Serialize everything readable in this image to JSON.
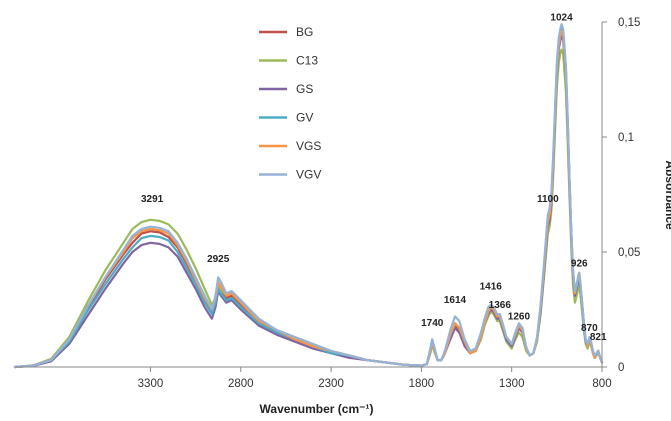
{
  "chart_data": {
    "type": "line",
    "xlabel": "Wavenumber (cm⁻¹)",
    "ylabel": "Absorbance",
    "xlim": [
      4050,
      800
    ],
    "ylim": [
      0,
      0.15
    ],
    "x_reversed": true,
    "y_axis_side": "right",
    "grid": false,
    "legend_position": "top-center",
    "x_ticks": [
      {
        "value": 3300,
        "label": "3300"
      },
      {
        "value": 2800,
        "label": "2800"
      },
      {
        "value": 2300,
        "label": "2300"
      },
      {
        "value": 1800,
        "label": "1800"
      },
      {
        "value": 1300,
        "label": "1300"
      },
      {
        "value": 800,
        "label": "800"
      }
    ],
    "y_ticks": [
      {
        "value": 0,
        "label": "0"
      },
      {
        "value": 0.05,
        "label": "0,05"
      },
      {
        "value": 0.1,
        "label": "0,1"
      },
      {
        "value": 0.15,
        "label": "0,15"
      }
    ],
    "peak_labels": [
      {
        "text": "3291",
        "x": 3291,
        "y": 0.07
      },
      {
        "text": "2925",
        "x": 2925,
        "y": 0.044
      },
      {
        "text": "1740",
        "x": 1740,
        "y": 0.016
      },
      {
        "text": "1614",
        "x": 1614,
        "y": 0.026
      },
      {
        "text": "1416",
        "x": 1416,
        "y": 0.032
      },
      {
        "text": "1366",
        "x": 1366,
        "y": 0.024
      },
      {
        "text": "1260",
        "x": 1260,
        "y": 0.019
      },
      {
        "text": "1100",
        "x": 1100,
        "y": 0.07
      },
      {
        "text": "1024",
        "x": 1024,
        "y": 0.149
      },
      {
        "text": "926",
        "x": 926,
        "y": 0.042
      },
      {
        "text": "870",
        "x": 870,
        "y": 0.014
      },
      {
        "text": "821",
        "x": 821,
        "y": 0.01
      }
    ],
    "x": [
      4050,
      3950,
      3850,
      3750,
      3650,
      3550,
      3450,
      3400,
      3350,
      3300,
      3250,
      3200,
      3150,
      3100,
      3050,
      3000,
      2960,
      2940,
      2925,
      2910,
      2880,
      2850,
      2800,
      2700,
      2600,
      2500,
      2400,
      2300,
      2200,
      2100,
      2000,
      1900,
      1850,
      1800,
      1770,
      1750,
      1740,
      1730,
      1710,
      1690,
      1670,
      1640,
      1614,
      1590,
      1560,
      1530,
      1500,
      1470,
      1450,
      1430,
      1416,
      1400,
      1380,
      1366,
      1350,
      1330,
      1300,
      1280,
      1260,
      1240,
      1220,
      1200,
      1180,
      1160,
      1140,
      1120,
      1100,
      1090,
      1080,
      1070,
      1060,
      1050,
      1040,
      1030,
      1024,
      1015,
      1000,
      990,
      980,
      970,
      960,
      950,
      940,
      930,
      926,
      920,
      910,
      900,
      890,
      880,
      870,
      860,
      850,
      840,
      830,
      821,
      810,
      800
    ],
    "series": [
      {
        "name": "BG",
        "color": "#c0504d",
        "values": [
          0,
          0.0006,
          0.003,
          0.012,
          0.025,
          0.038,
          0.049,
          0.054,
          0.058,
          0.059,
          0.0585,
          0.0565,
          0.052,
          0.045,
          0.037,
          0.029,
          0.024,
          0.029,
          0.036,
          0.034,
          0.03,
          0.031,
          0.027,
          0.019,
          0.015,
          0.012,
          0.009,
          0.006,
          0.005,
          0.003,
          0.002,
          0.001,
          0.0008,
          0.0006,
          0.0012,
          0.007,
          0.011,
          0.008,
          0.003,
          0.003,
          0.006,
          0.013,
          0.018,
          0.016,
          0.01,
          0.006,
          0.007,
          0.013,
          0.019,
          0.023,
          0.025,
          0.024,
          0.021,
          0.021,
          0.017,
          0.012,
          0.009,
          0.013,
          0.017,
          0.015,
          0.008,
          0.005,
          0.006,
          0.012,
          0.025,
          0.043,
          0.062,
          0.065,
          0.072,
          0.088,
          0.108,
          0.128,
          0.139,
          0.1435,
          0.145,
          0.143,
          0.128,
          0.105,
          0.08,
          0.058,
          0.04,
          0.031,
          0.034,
          0.038,
          0.039,
          0.035,
          0.027,
          0.018,
          0.011,
          0.009,
          0.012,
          0.01,
          0.006,
          0.004,
          0.006,
          0.007,
          0.004,
          0.002
        ]
      },
      {
        "name": "C13",
        "color": "#9bbb59",
        "values": [
          0,
          0.0007,
          0.0035,
          0.013,
          0.028,
          0.042,
          0.054,
          0.06,
          0.063,
          0.064,
          0.0635,
          0.062,
          0.058,
          0.051,
          0.043,
          0.034,
          0.027,
          0.03,
          0.036,
          0.034,
          0.031,
          0.032,
          0.028,
          0.02,
          0.016,
          0.013,
          0.01,
          0.007,
          0.005,
          0.003,
          0.002,
          0.001,
          0.0008,
          0.0006,
          0.0012,
          0.006,
          0.01,
          0.007,
          0.003,
          0.003,
          0.006,
          0.013,
          0.017,
          0.015,
          0.01,
          0.006,
          0.007,
          0.012,
          0.018,
          0.022,
          0.024,
          0.023,
          0.02,
          0.02,
          0.016,
          0.011,
          0.008,
          0.012,
          0.015,
          0.013,
          0.007,
          0.005,
          0.006,
          0.011,
          0.023,
          0.04,
          0.058,
          0.061,
          0.068,
          0.083,
          0.102,
          0.121,
          0.132,
          0.137,
          0.138,
          0.136,
          0.12,
          0.098,
          0.074,
          0.052,
          0.035,
          0.028,
          0.031,
          0.035,
          0.036,
          0.032,
          0.024,
          0.016,
          0.01,
          0.008,
          0.011,
          0.009,
          0.006,
          0.004,
          0.005,
          0.006,
          0.004,
          0.002
        ]
      },
      {
        "name": "GS",
        "color": "#8064a2",
        "values": [
          0,
          0.0005,
          0.0025,
          0.01,
          0.022,
          0.034,
          0.045,
          0.05,
          0.053,
          0.054,
          0.0535,
          0.052,
          0.048,
          0.041,
          0.034,
          0.026,
          0.021,
          0.026,
          0.033,
          0.031,
          0.028,
          0.029,
          0.025,
          0.018,
          0.014,
          0.011,
          0.008,
          0.006,
          0.004,
          0.003,
          0.002,
          0.001,
          0.0008,
          0.0006,
          0.0012,
          0.007,
          0.011,
          0.008,
          0.003,
          0.003,
          0.006,
          0.012,
          0.017,
          0.015,
          0.009,
          0.006,
          0.007,
          0.013,
          0.019,
          0.023,
          0.025,
          0.024,
          0.021,
          0.021,
          0.017,
          0.012,
          0.009,
          0.013,
          0.017,
          0.015,
          0.008,
          0.005,
          0.006,
          0.012,
          0.024,
          0.042,
          0.061,
          0.064,
          0.071,
          0.087,
          0.107,
          0.127,
          0.138,
          0.1425,
          0.144,
          0.142,
          0.127,
          0.104,
          0.079,
          0.057,
          0.039,
          0.031,
          0.034,
          0.038,
          0.039,
          0.035,
          0.027,
          0.018,
          0.011,
          0.009,
          0.012,
          0.01,
          0.006,
          0.004,
          0.006,
          0.007,
          0.004,
          0.002
        ]
      },
      {
        "name": "GV",
        "color": "#4bacc6",
        "values": [
          0,
          0.0006,
          0.003,
          0.011,
          0.024,
          0.036,
          0.047,
          0.052,
          0.056,
          0.057,
          0.0565,
          0.055,
          0.05,
          0.043,
          0.036,
          0.028,
          0.023,
          0.028,
          0.034,
          0.032,
          0.029,
          0.03,
          0.026,
          0.019,
          0.015,
          0.012,
          0.009,
          0.006,
          0.005,
          0.003,
          0.002,
          0.001,
          0.0008,
          0.0006,
          0.0012,
          0.008,
          0.012,
          0.009,
          0.003,
          0.003,
          0.006,
          0.014,
          0.019,
          0.017,
          0.011,
          0.006,
          0.007,
          0.013,
          0.019,
          0.024,
          0.026,
          0.025,
          0.022,
          0.022,
          0.018,
          0.013,
          0.01,
          0.014,
          0.018,
          0.016,
          0.008,
          0.005,
          0.006,
          0.012,
          0.026,
          0.044,
          0.064,
          0.067,
          0.074,
          0.09,
          0.11,
          0.13,
          0.141,
          0.1455,
          0.147,
          0.145,
          0.13,
          0.107,
          0.081,
          0.058,
          0.041,
          0.032,
          0.035,
          0.039,
          0.04,
          0.036,
          0.028,
          0.018,
          0.011,
          0.009,
          0.012,
          0.01,
          0.006,
          0.004,
          0.006,
          0.007,
          0.004,
          0.002
        ]
      },
      {
        "name": "VGS",
        "color": "#f79646",
        "values": [
          0,
          0.0006,
          0.003,
          0.012,
          0.026,
          0.039,
          0.05,
          0.056,
          0.059,
          0.06,
          0.0595,
          0.058,
          0.053,
          0.046,
          0.038,
          0.03,
          0.025,
          0.03,
          0.037,
          0.035,
          0.031,
          0.032,
          0.028,
          0.02,
          0.016,
          0.012,
          0.009,
          0.007,
          0.005,
          0.003,
          0.002,
          0.001,
          0.0008,
          0.0006,
          0.0012,
          0.007,
          0.011,
          0.008,
          0.003,
          0.003,
          0.006,
          0.014,
          0.019,
          0.017,
          0.011,
          0.006,
          0.007,
          0.013,
          0.019,
          0.024,
          0.026,
          0.025,
          0.022,
          0.022,
          0.018,
          0.013,
          0.01,
          0.014,
          0.018,
          0.016,
          0.008,
          0.005,
          0.006,
          0.012,
          0.026,
          0.044,
          0.063,
          0.066,
          0.073,
          0.089,
          0.109,
          0.129,
          0.14,
          0.1445,
          0.146,
          0.144,
          0.129,
          0.106,
          0.081,
          0.058,
          0.041,
          0.032,
          0.036,
          0.04,
          0.041,
          0.037,
          0.028,
          0.019,
          0.012,
          0.009,
          0.012,
          0.01,
          0.006,
          0.004,
          0.006,
          0.007,
          0.004,
          0.002
        ]
      },
      {
        "name": "VGV",
        "color": "#95b3d7",
        "values": [
          0,
          0.0006,
          0.003,
          0.012,
          0.026,
          0.039,
          0.051,
          0.057,
          0.06,
          0.061,
          0.0605,
          0.059,
          0.054,
          0.047,
          0.039,
          0.031,
          0.025,
          0.031,
          0.039,
          0.037,
          0.032,
          0.033,
          0.029,
          0.021,
          0.016,
          0.013,
          0.01,
          0.007,
          0.005,
          0.003,
          0.002,
          0.001,
          0.0008,
          0.0006,
          0.0012,
          0.008,
          0.012,
          0.009,
          0.003,
          0.003,
          0.007,
          0.016,
          0.022,
          0.02,
          0.012,
          0.007,
          0.008,
          0.015,
          0.021,
          0.026,
          0.027,
          0.026,
          0.023,
          0.023,
          0.019,
          0.013,
          0.01,
          0.015,
          0.019,
          0.017,
          0.009,
          0.005,
          0.006,
          0.013,
          0.027,
          0.046,
          0.066,
          0.069,
          0.076,
          0.092,
          0.112,
          0.132,
          0.143,
          0.1475,
          0.149,
          0.147,
          0.131,
          0.108,
          0.082,
          0.059,
          0.042,
          0.033,
          0.036,
          0.04,
          0.041,
          0.037,
          0.028,
          0.019,
          0.012,
          0.01,
          0.013,
          0.011,
          0.007,
          0.005,
          0.006,
          0.007,
          0.004,
          0.002
        ]
      }
    ]
  }
}
